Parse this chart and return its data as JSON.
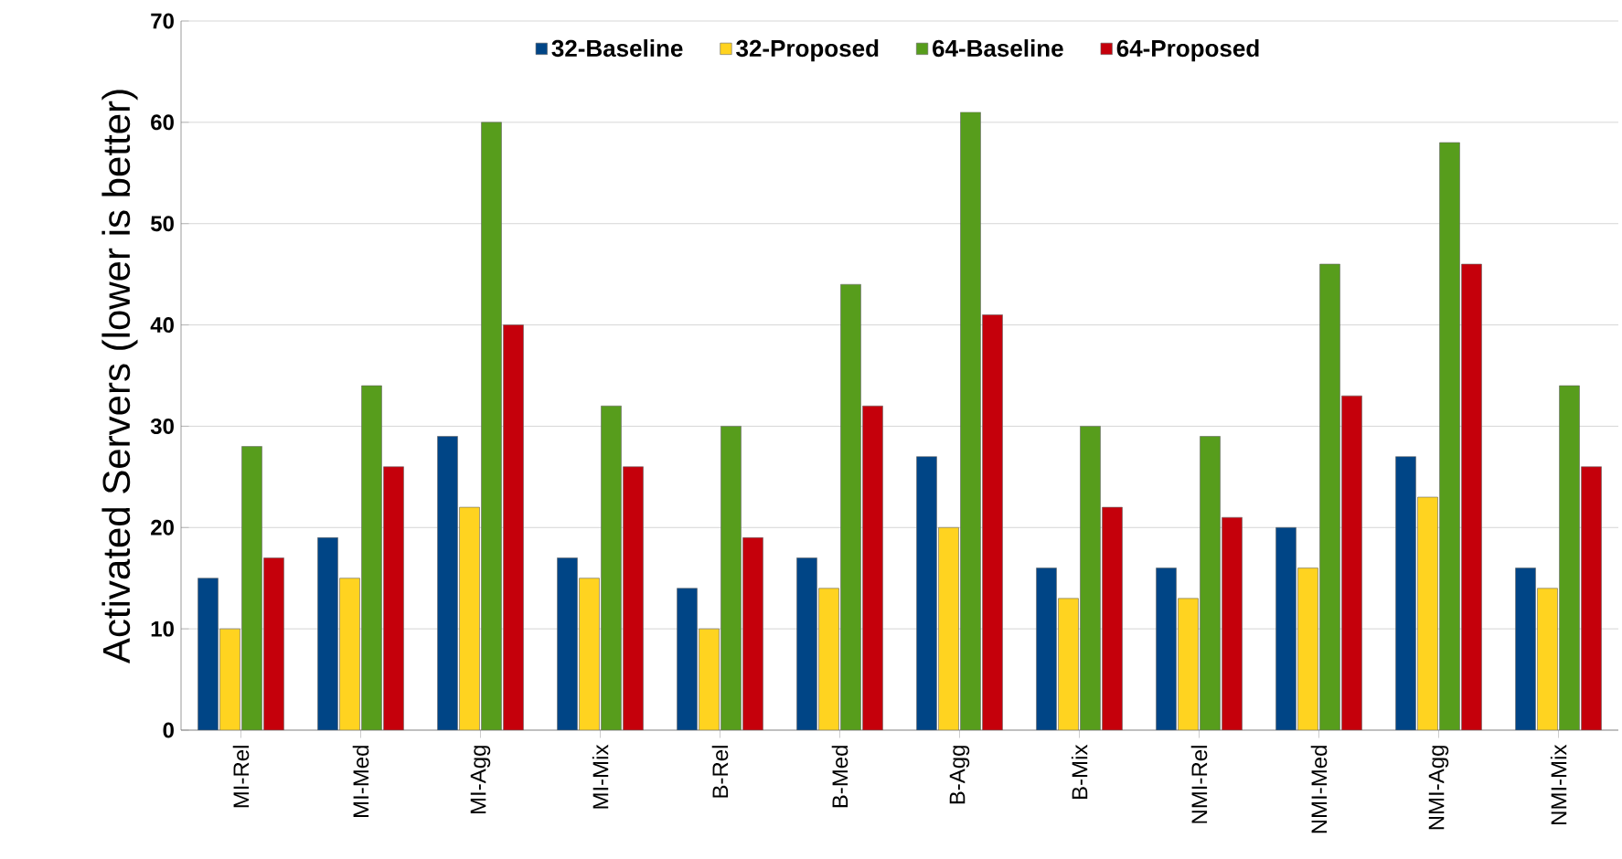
{
  "chart_data": {
    "type": "bar",
    "ylabel": "Activated Servers (lower is better)",
    "categories": [
      "MI-Rel",
      "MI-Med",
      "MI-Agg",
      "MI-Mix",
      "B-Rel",
      "B-Med",
      "B-Agg",
      "B-Mix",
      "NMI-Rel",
      "NMI-Med",
      "NMI-Agg",
      "NMI-Mix"
    ],
    "series": [
      {
        "name": "32-Baseline",
        "color": "#004586",
        "values": [
          15,
          19,
          29,
          17,
          14,
          17,
          27,
          16,
          16,
          20,
          27,
          16
        ]
      },
      {
        "name": "32-Proposed",
        "color": "#ffd320",
        "values": [
          10,
          15,
          22,
          15,
          10,
          14,
          20,
          13,
          13,
          16,
          23,
          14
        ]
      },
      {
        "name": "64-Baseline",
        "color": "#579d1c",
        "values": [
          28,
          34,
          60,
          32,
          30,
          44,
          61,
          30,
          29,
          46,
          58,
          34
        ]
      },
      {
        "name": "64-Proposed",
        "color": "#c5000b",
        "values": [
          17,
          26,
          40,
          26,
          19,
          32,
          41,
          22,
          21,
          33,
          46,
          26
        ]
      }
    ],
    "ylim": [
      0,
      70
    ],
    "yticks": [
      0,
      10,
      20,
      30,
      40,
      50,
      60,
      70
    ],
    "grid": "y",
    "legend": "top"
  }
}
